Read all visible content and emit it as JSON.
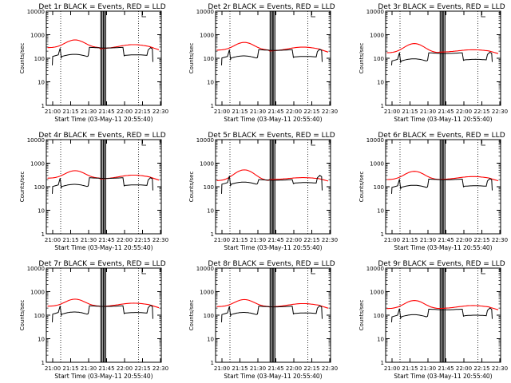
{
  "chart_data": [
    {
      "type": "line",
      "title": "Det 1r BLACK = Events, RED = LLD",
      "xlabel": "Start Time (03-May-11 20:55:40)",
      "ylabel": "Counts/sec",
      "yscale": "log",
      "ylim": [
        1,
        10000
      ],
      "xticks": [
        "21:00",
        "21:15",
        "21:30",
        "21:45",
        "22:00",
        "22:15",
        "22:30"
      ],
      "yticks": [
        "1",
        "10",
        "100",
        "1000",
        "10000"
      ],
      "xlim_min": [
        -1,
        95
      ],
      "red_peak": 600,
      "red_base": 280,
      "red_trough": 250,
      "black_level": 140,
      "black_mid": 290,
      "series": [
        {
          "name": "Events",
          "color": "#000000"
        },
        {
          "name": "LLD",
          "color": "#ff0000"
        }
      ]
    },
    {
      "type": "line",
      "title": "Det 2r BLACK = Events, RED = LLD",
      "xlabel": "Start Time (03-May-11 20:55:40)",
      "ylabel": "Counts/sec",
      "yscale": "log",
      "ylim": [
        1,
        10000
      ],
      "xticks": [
        "21:00",
        "21:15",
        "21:30",
        "21:45",
        "22:00",
        "22:15",
        "22:30"
      ],
      "yticks": [
        "1",
        "10",
        "100",
        "1000",
        "10000"
      ],
      "xlim_min": [
        -1,
        95
      ],
      "red_peak": 470,
      "red_base": 220,
      "red_trough": 200,
      "black_level": 120,
      "black_mid": 230,
      "series": [
        {
          "name": "Events",
          "color": "#000000"
        },
        {
          "name": "LLD",
          "color": "#ff0000"
        }
      ]
    },
    {
      "type": "line",
      "title": "Det 3r BLACK = Events, RED = LLD",
      "xlabel": "Start Time (03-May-11 20:55:40)",
      "ylabel": "Counts/sec",
      "yscale": "log",
      "ylim": [
        1,
        10000
      ],
      "xticks": [
        "21:00",
        "21:15",
        "21:30",
        "21:45",
        "22:00",
        "22:15",
        "22:30"
      ],
      "yticks": [
        "1",
        "10",
        "100",
        "1000",
        "10000"
      ],
      "xlim_min": [
        -1,
        95
      ],
      "red_peak": 420,
      "red_base": 170,
      "red_trough": 180,
      "black_level": 90,
      "black_mid": 170,
      "series": [
        {
          "name": "Events",
          "color": "#000000"
        },
        {
          "name": "LLD",
          "color": "#ff0000"
        }
      ]
    },
    {
      "type": "line",
      "title": "Det 4r BLACK = Events, RED = LLD",
      "xlabel": "Start Time (03-May-11 20:55:40)",
      "ylabel": "Counts/sec",
      "yscale": "log",
      "ylim": [
        1,
        10000
      ],
      "xticks": [
        "21:00",
        "21:15",
        "21:30",
        "21:45",
        "22:00",
        "22:15",
        "22:30"
      ],
      "yticks": [
        "1",
        "10",
        "100",
        "1000",
        "10000"
      ],
      "xlim_min": [
        -1,
        95
      ],
      "red_peak": 480,
      "red_base": 230,
      "red_trough": 210,
      "black_level": 120,
      "black_mid": 240,
      "series": [
        {
          "name": "Events",
          "color": "#000000"
        },
        {
          "name": "LLD",
          "color": "#ff0000"
        }
      ]
    },
    {
      "type": "line",
      "title": "Det 5r BLACK = Events, RED = LLD",
      "xlabel": "Start Time (03-May-11 20:55:40)",
      "ylabel": "Counts/sec",
      "yscale": "log",
      "ylim": [
        1,
        10000
      ],
      "xticks": [
        "21:00",
        "21:15",
        "21:30",
        "21:45",
        "22:00",
        "22:15",
        "22:30"
      ],
      "yticks": [
        "1",
        "10",
        "100",
        "1000",
        "10000"
      ],
      "xlim_min": [
        -1,
        95
      ],
      "red_peak": 520,
      "red_base": 180,
      "red_trough": 200,
      "black_level": 150,
      "black_mid": 200,
      "series": [
        {
          "name": "Events",
          "color": "#000000"
        },
        {
          "name": "LLD",
          "color": "#ff0000"
        }
      ]
    },
    {
      "type": "line",
      "title": "Det 6r BLACK = Events, RED = LLD",
      "xlabel": "Start Time (03-May-11 20:55:40)",
      "ylabel": "Counts/sec",
      "yscale": "log",
      "ylim": [
        1,
        10000
      ],
      "xticks": [
        "21:00",
        "21:15",
        "21:30",
        "21:45",
        "22:00",
        "22:15",
        "22:30"
      ],
      "yticks": [
        "1",
        "10",
        "100",
        "1000",
        "10000"
      ],
      "xlim_min": [
        -1,
        95
      ],
      "red_peak": 450,
      "red_base": 200,
      "red_trough": 200,
      "black_level": 110,
      "black_mid": 210,
      "series": [
        {
          "name": "Events",
          "color": "#000000"
        },
        {
          "name": "LLD",
          "color": "#ff0000"
        }
      ]
    },
    {
      "type": "line",
      "title": "Det 7r BLACK = Events, RED = LLD",
      "xlabel": "Start Time (03-May-11 20:55:40)",
      "ylabel": "Counts/sec",
      "yscale": "log",
      "ylim": [
        1,
        10000
      ],
      "xticks": [
        "21:00",
        "21:15",
        "21:30",
        "21:45",
        "22:00",
        "22:15",
        "22:30"
      ],
      "yticks": [
        "1",
        "10",
        "100",
        "1000",
        "10000"
      ],
      "xlim_min": [
        -1,
        95
      ],
      "red_peak": 480,
      "red_base": 240,
      "red_trough": 230,
      "black_level": 130,
      "black_mid": 250,
      "series": [
        {
          "name": "Events",
          "color": "#000000"
        },
        {
          "name": "LLD",
          "color": "#ff0000"
        }
      ]
    },
    {
      "type": "line",
      "title": "Det 8r BLACK = Events, RED = LLD",
      "xlabel": "Start Time (03-May-11 20:55:40)",
      "ylabel": "Counts/sec",
      "yscale": "log",
      "ylim": [
        1,
        10000
      ],
      "xticks": [
        "21:00",
        "21:15",
        "21:30",
        "21:45",
        "22:00",
        "22:15",
        "22:30"
      ],
      "yticks": [
        "1",
        "10",
        "100",
        "1000",
        "10000"
      ],
      "xlim_min": [
        -1,
        95
      ],
      "red_peak": 460,
      "red_base": 230,
      "red_trough": 220,
      "black_level": 125,
      "black_mid": 240,
      "series": [
        {
          "name": "Events",
          "color": "#000000"
        },
        {
          "name": "LLD",
          "color": "#ff0000"
        }
      ]
    },
    {
      "type": "line",
      "title": "Det 9r BLACK = Events, RED = LLD",
      "xlabel": "Start Time (03-May-11 20:55:40)",
      "ylabel": "Counts/sec",
      "yscale": "log",
      "ylim": [
        1,
        10000
      ],
      "xticks": [
        "21:00",
        "21:15",
        "21:30",
        "21:45",
        "22:00",
        "22:15",
        "22:30"
      ],
      "yticks": [
        "1",
        "10",
        "100",
        "1000",
        "10000"
      ],
      "xlim_min": [
        -1,
        95
      ],
      "red_peak": 420,
      "red_base": 190,
      "red_trough": 190,
      "black_level": 100,
      "black_mid": 180,
      "series": [
        {
          "name": "Events",
          "color": "#000000"
        },
        {
          "name": "LLD",
          "color": "#ff0000"
        }
      ]
    }
  ]
}
